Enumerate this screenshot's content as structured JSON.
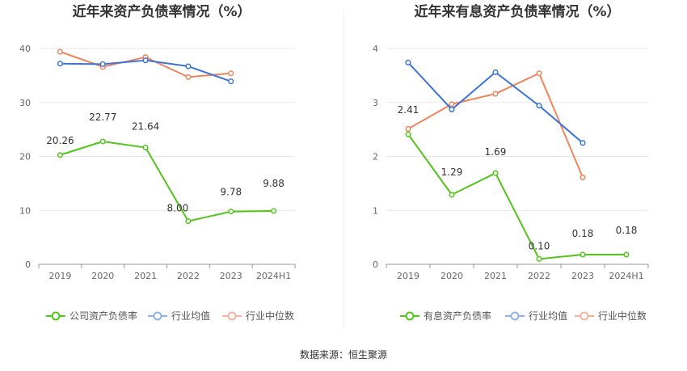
{
  "source": "数据来源：恒生聚源",
  "colors": {
    "company": "#52c41a",
    "avg": "#3b73d9",
    "median": "#f0835a",
    "avg_legend": "#8fb0ea",
    "median_legend": "#f5b49c"
  },
  "chart_data": [
    {
      "type": "line",
      "title": "近年来资产负债率情况（%）",
      "categories": [
        "2019",
        "2020",
        "2021",
        "2022",
        "2023",
        "2024H1"
      ],
      "ylim": [
        0,
        40
      ],
      "yticks": [
        "0",
        "10",
        "20",
        "30",
        "40"
      ],
      "grid": true,
      "legend_position": "bottom",
      "series": [
        {
          "name": "公司资产负债率",
          "values": [
            20.26,
            22.77,
            21.64,
            8.0,
            9.78,
            9.88
          ],
          "labels": [
            "20.26",
            "22.77",
            "21.64",
            "8.00",
            "9.78",
            "9.88"
          ]
        },
        {
          "name": "行业均值",
          "values": [
            37.2,
            37.1,
            37.8,
            36.7,
            33.9,
            null
          ]
        },
        {
          "name": "行业中位数",
          "values": [
            39.4,
            36.6,
            38.4,
            34.7,
            35.4,
            null
          ]
        }
      ]
    },
    {
      "type": "line",
      "title": "近年来有息资产负债率情况（%）",
      "categories": [
        "2019",
        "2020",
        "2021",
        "2022",
        "2023",
        "2024H1"
      ],
      "ylim": [
        0,
        4
      ],
      "yticks": [
        "0",
        "1",
        "2",
        "3",
        "4"
      ],
      "grid": true,
      "legend_position": "bottom",
      "series": [
        {
          "name": "有息资产负债率",
          "values": [
            2.41,
            1.29,
            1.69,
            0.1,
            0.18,
            0.18
          ],
          "labels": [
            "2.41",
            "1.29",
            "1.69",
            "0.10",
            "0.18",
            "0.18"
          ]
        },
        {
          "name": "行业均值",
          "values": [
            3.74,
            2.87,
            3.56,
            2.94,
            2.25,
            null
          ]
        },
        {
          "name": "行业中位数",
          "values": [
            2.51,
            2.97,
            3.16,
            3.54,
            1.61,
            null
          ]
        }
      ]
    }
  ]
}
